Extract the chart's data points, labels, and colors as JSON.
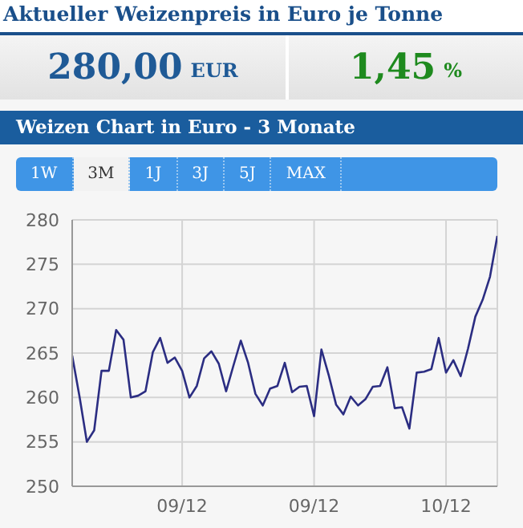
{
  "chart_data": {
    "type": "line",
    "title": "Aktueller Weizenpreis in Euro je Tonne",
    "subtitle": "Weizen Chart in Euro - 3 Monate",
    "annotations": [
      "280,00 EUR",
      "1,45 %",
      "1W",
      "3M",
      "1J",
      "3J",
      "5J",
      "MAX"
    ],
    "categories": [
      null,
      null,
      null,
      null,
      null,
      null,
      null,
      null,
      null,
      null,
      null,
      null,
      null,
      null,
      null,
      "09/12",
      null,
      null,
      null,
      null,
      null,
      null,
      null,
      null,
      null,
      null,
      null,
      null,
      null,
      null,
      null,
      null,
      null,
      "09/12",
      null,
      null,
      null,
      null,
      null,
      null,
      null,
      null,
      null,
      null,
      null,
      null,
      null,
      null,
      null,
      null,
      null,
      "10/12",
      null,
      null,
      null,
      null,
      null,
      null,
      null
    ],
    "series": [
      {
        "color": "#2b2d82",
        "values": [
          264.7,
          260.1,
          255,
          256.3,
          263,
          263,
          267.6,
          266.5,
          260,
          260.2,
          260.7,
          265.1,
          266.7,
          263.9,
          264.5,
          263,
          260,
          261.3,
          264.4,
          265.2,
          263.8,
          260.7,
          263.6,
          266.4,
          263.9,
          260.4,
          259.1,
          261,
          261.3,
          263.9,
          260.6,
          261.2,
          261.3,
          257.9,
          265.4,
          262.5,
          259.2,
          258.1,
          260.1,
          259.1,
          259.8,
          261.2,
          261.3,
          263.4,
          258.8,
          258.9,
          256.5,
          262.8,
          262.9,
          263.2,
          266.7,
          262.8,
          264.2,
          262.4,
          265.5,
          269.1,
          271,
          273.6,
          278.2
        ]
      }
    ],
    "ylim": [
      250,
      280
    ],
    "yticks": [
      250,
      255,
      260,
      265,
      270,
      275,
      280
    ],
    "grid": true,
    "legend": false,
    "marker": "none",
    "line_style": "solid"
  }
}
